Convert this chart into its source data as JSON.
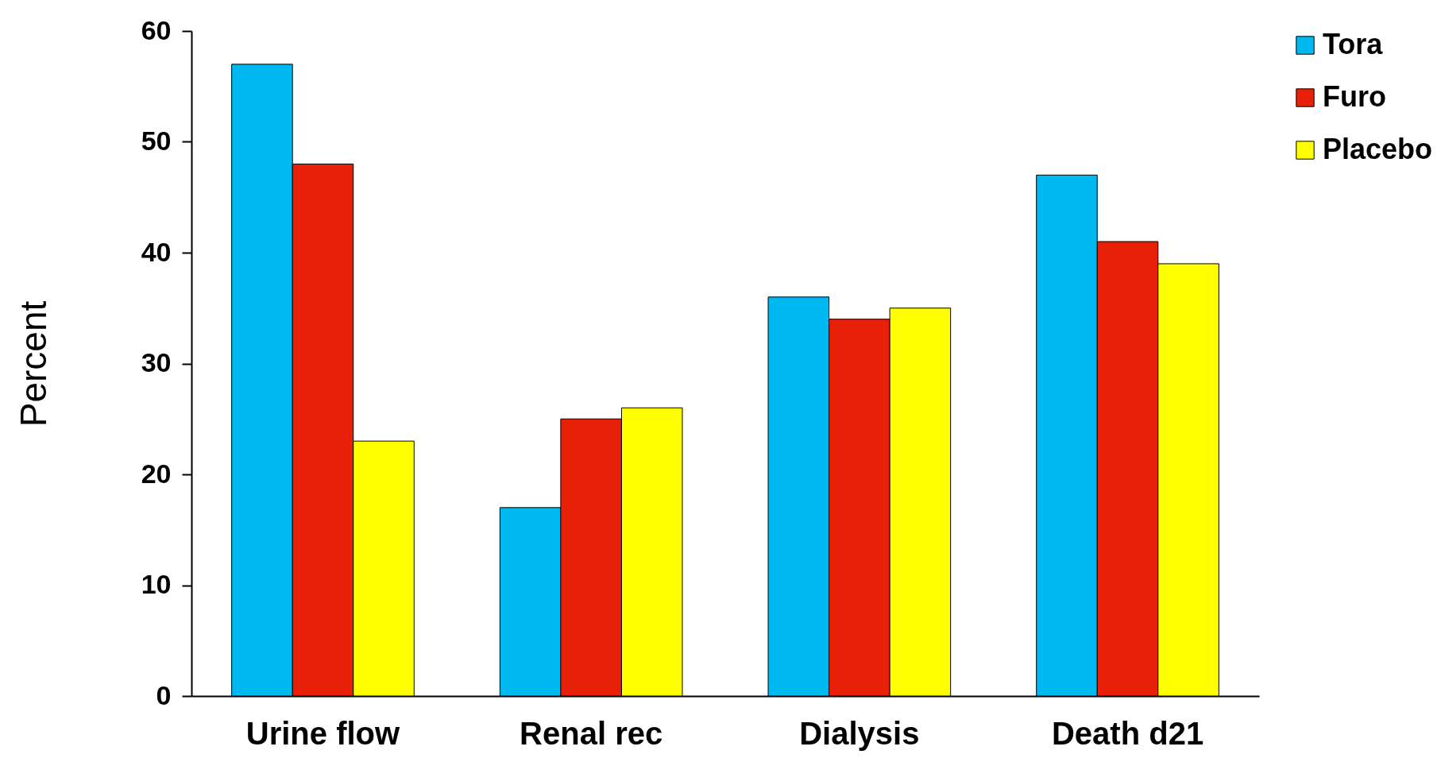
{
  "chart_data": {
    "type": "bar",
    "ylabel": "Percent",
    "categories": [
      "Urine flow",
      "Renal rec",
      "Dialysis",
      "Death d21"
    ],
    "series": [
      {
        "name": "Tora",
        "color": "#00b8f0",
        "values": [
          57,
          17,
          36,
          47
        ]
      },
      {
        "name": "Furo",
        "color": "#e82008",
        "values": [
          48,
          25,
          34,
          41
        ]
      },
      {
        "name": "Placebo",
        "color": "#ffff00",
        "values": [
          23,
          26,
          35,
          39
        ]
      }
    ],
    "ylim": [
      0,
      60
    ],
    "yticks": [
      0,
      10,
      20,
      30,
      40,
      50,
      60
    ],
    "grid": false,
    "legend": "right"
  }
}
